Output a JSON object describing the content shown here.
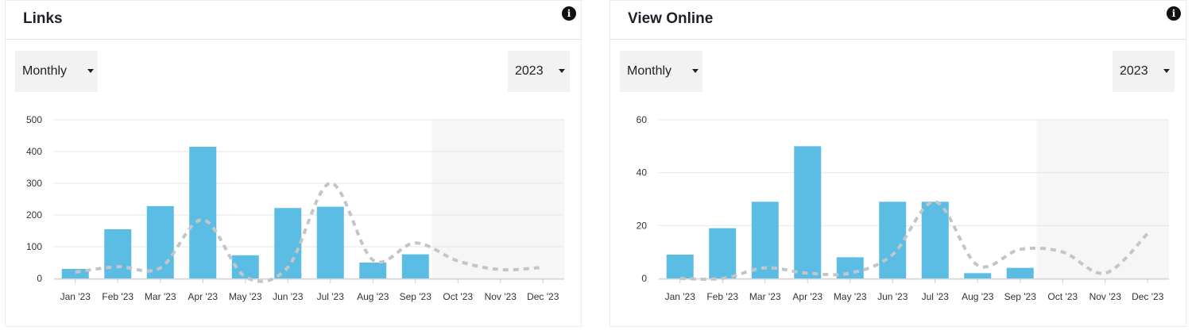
{
  "colors": {
    "bar": "#5bbde4",
    "trend_line": "#c3c6c9",
    "future_shade": "#f6f6f6",
    "grid": "#e6e6e6"
  },
  "panels": [
    {
      "title": "Links",
      "info_icon": "info-icon",
      "period_select": {
        "value": "Monthly",
        "icon": "caret-down-icon"
      },
      "year_select": {
        "value": "2023",
        "icon": "caret-down-icon"
      }
    },
    {
      "title": "View Online",
      "info_icon": "info-icon",
      "period_select": {
        "value": "Monthly",
        "icon": "caret-down-icon"
      },
      "year_select": {
        "value": "2023",
        "icon": "caret-down-icon"
      }
    }
  ],
  "chart_data": [
    {
      "type": "bar",
      "title": "Links",
      "categories": [
        "Jan '23",
        "Feb '23",
        "Mar '23",
        "Apr '23",
        "May '23",
        "Jun '23",
        "Jul '23",
        "Aug '23",
        "Sep '23",
        "Oct '23",
        "Nov '23",
        "Dec '23"
      ],
      "series": [
        {
          "type": "bar",
          "values": [
            30,
            155,
            228,
            415,
            73,
            222,
            226,
            50,
            76,
            null,
            null,
            null
          ]
        },
        {
          "type": "line",
          "style": "dashed",
          "values": [
            20,
            37,
            33,
            185,
            5,
            35,
            300,
            58,
            112,
            55,
            28,
            35
          ]
        }
      ],
      "ylim": [
        0,
        500
      ],
      "yticks": [
        0,
        100,
        200,
        300,
        400,
        500
      ],
      "grid": true,
      "future_region_start": "Oct '23"
    },
    {
      "type": "bar",
      "title": "View Online",
      "categories": [
        "Jan '23",
        "Feb '23",
        "Mar '23",
        "Apr '23",
        "May '23",
        "Jun '23",
        "Jul '23",
        "Aug '23",
        "Sep '23",
        "Oct '23",
        "Nov '23",
        "Dec '23"
      ],
      "series": [
        {
          "type": "bar",
          "values": [
            9,
            19,
            29,
            50,
            8,
            29,
            29,
            2,
            4,
            null,
            null,
            null
          ]
        },
        {
          "type": "line",
          "style": "dashed",
          "values": [
            0,
            0,
            4,
            2,
            2,
            9,
            29,
            5,
            11,
            10,
            2,
            17
          ]
        }
      ],
      "ylim": [
        0,
        60
      ],
      "yticks": [
        0,
        20,
        40,
        60
      ],
      "grid": true,
      "future_region_start": "Oct '23"
    }
  ]
}
